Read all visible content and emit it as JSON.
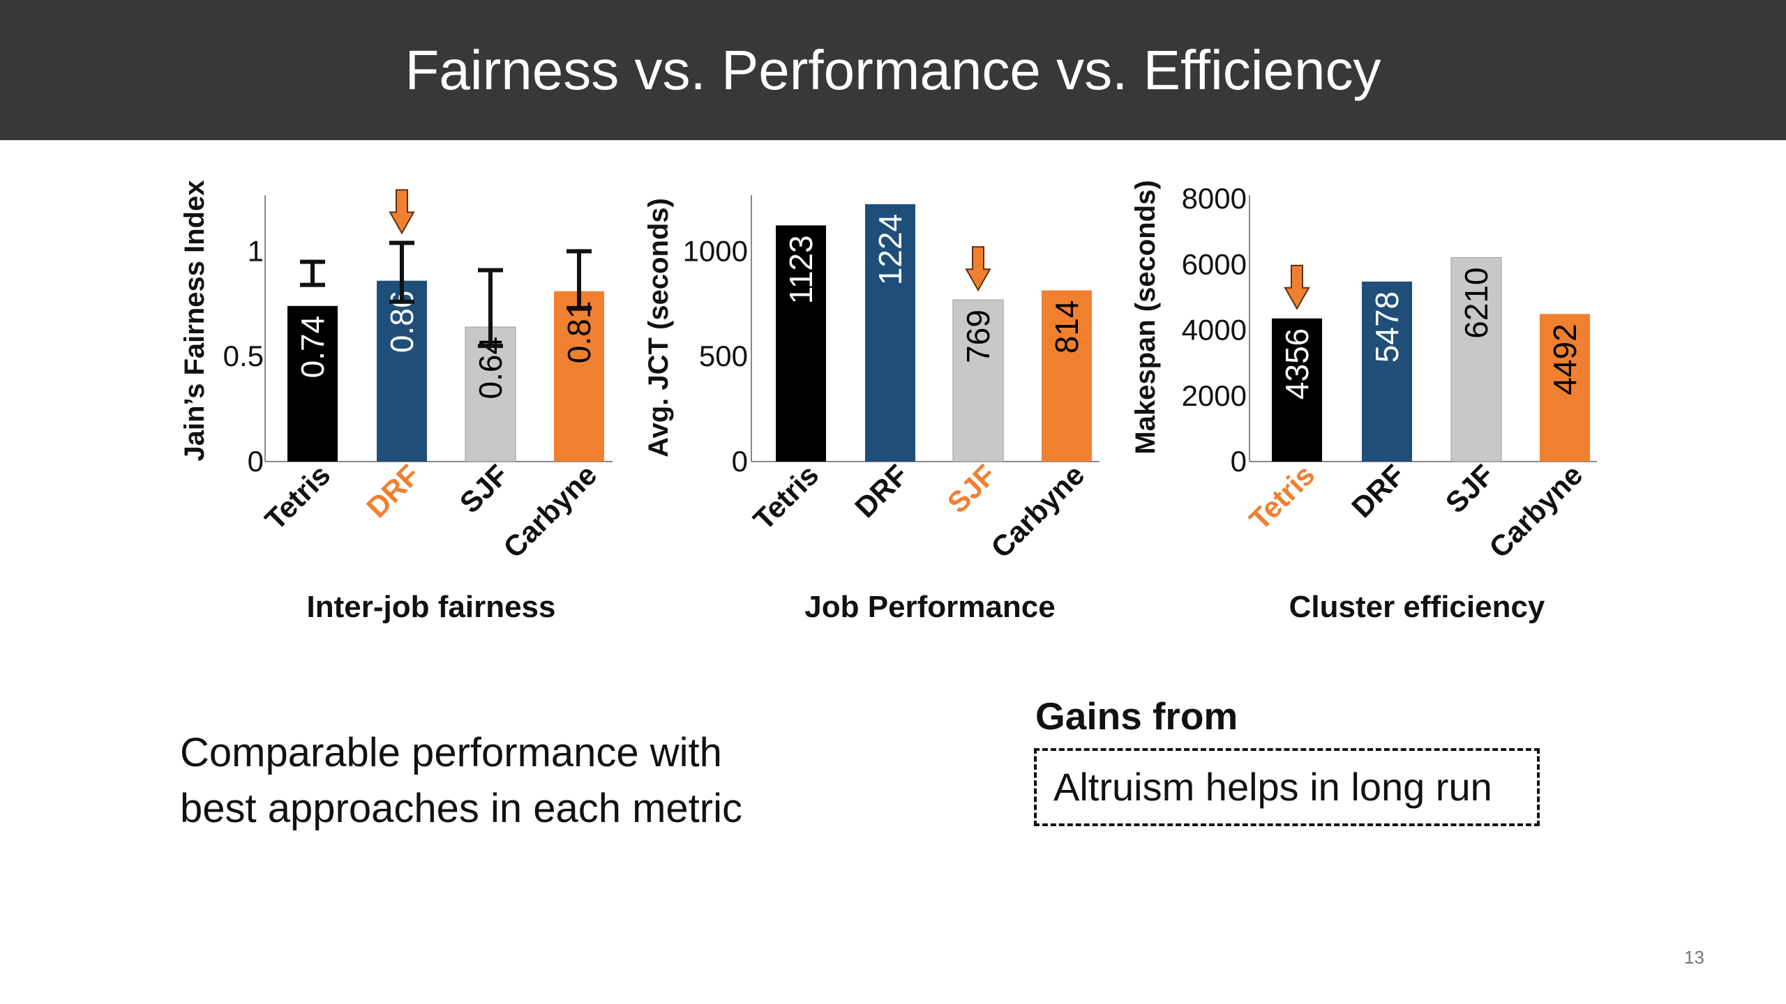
{
  "title": "Fairness vs. Performance vs. Efficiency",
  "chart_data": [
    {
      "type": "bar",
      "subtitle": "Inter-job fairness",
      "ylabel": "Jain’s Fairness Index",
      "ylim": [
        0,
        1.25
      ],
      "yticks": [
        "0",
        "0.5",
        "1"
      ],
      "ytick_values": [
        0,
        0.5,
        1
      ],
      "categories": [
        "Tetris",
        "DRF",
        "SJF",
        "Carbyne"
      ],
      "values": [
        0.74,
        0.86,
        0.64,
        0.81
      ],
      "value_labels": [
        "0.74",
        "0.86",
        "0.64",
        "0.81"
      ],
      "error_low": [
        0.84,
        0.76,
        0.55,
        0.73
      ],
      "error_high": [
        0.95,
        1.04,
        0.91,
        1.0
      ],
      "colors": [
        "#000000",
        "#1f4e79",
        "#c8c8c8",
        "#f08030"
      ],
      "label_colors": [
        "#ffffff",
        "#ffffff",
        "#000000",
        "#000000"
      ],
      "highlight": "DRF"
    },
    {
      "type": "bar",
      "subtitle": "Job Performance",
      "ylabel": "Avg. JCT (seconds)",
      "ylim": [
        0,
        1250
      ],
      "yticks": [
        "0",
        "500",
        "1000"
      ],
      "ytick_values": [
        0,
        500,
        1000
      ],
      "categories": [
        "Tetris",
        "DRF",
        "SJF",
        "Carbyne"
      ],
      "values": [
        1123,
        1224,
        769,
        814
      ],
      "value_labels": [
        "1123",
        "1224",
        "769",
        "814"
      ],
      "colors": [
        "#000000",
        "#1f4e79",
        "#c8c8c8",
        "#f08030"
      ],
      "label_colors": [
        "#ffffff",
        "#ffffff",
        "#000000",
        "#000000"
      ],
      "highlight": "SJF"
    },
    {
      "type": "bar",
      "subtitle": "Cluster efficiency",
      "ylabel": "Makespan (seconds)",
      "ylim": [
        0,
        8000
      ],
      "yticks": [
        "0",
        "2000",
        "4000",
        "6000",
        "8000"
      ],
      "ytick_values": [
        0,
        2000,
        4000,
        6000,
        8000
      ],
      "categories": [
        "Tetris",
        "DRF",
        "SJF",
        "Carbyne"
      ],
      "values": [
        4356,
        5478,
        6210,
        4492
      ],
      "value_labels": [
        "4356",
        "5478",
        "6210",
        "4492"
      ],
      "colors": [
        "#000000",
        "#1f4e79",
        "#c8c8c8",
        "#f08030"
      ],
      "label_colors": [
        "#ffffff",
        "#ffffff",
        "#000000",
        "#000000"
      ],
      "highlight": "Tetris"
    }
  ],
  "accent_color": "#f08030",
  "body_text_lines": [
    "Comparable performance with",
    "best approaches in each metric"
  ],
  "gains_title": "Gains from",
  "gains_box_text": "Altruism helps in long run",
  "page_number": "13"
}
